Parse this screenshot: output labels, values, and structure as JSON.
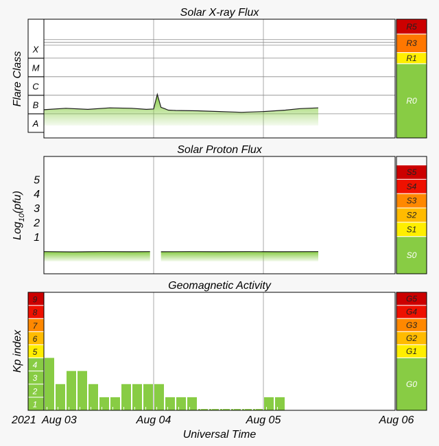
{
  "chart_data": [
    {
      "type": "area",
      "title": "Solar X-ray Flux",
      "ylabel": "Flare Class",
      "y_levels": [
        {
          "label": "A",
          "value": 1
        },
        {
          "label": "B",
          "value": 2
        },
        {
          "label": "C",
          "value": 3
        },
        {
          "label": "M",
          "value": 4
        },
        {
          "label": "X",
          "value": 5
        }
      ],
      "ylim": [
        0.2,
        6.6
      ],
      "xlim": [
        0,
        96
      ],
      "x_data_end": 75,
      "gap": [],
      "series": [
        {
          "x": [
            0,
            6,
            12,
            18,
            24,
            28,
            30,
            31,
            32,
            33,
            34,
            36,
            42,
            48,
            54,
            60,
            66,
            70,
            75
          ],
          "values": [
            1.72,
            1.8,
            1.74,
            1.82,
            1.8,
            1.74,
            1.76,
            2.55,
            1.85,
            1.78,
            1.7,
            1.68,
            1.66,
            1.62,
            1.58,
            1.62,
            1.7,
            1.78,
            1.82
          ]
        }
      ],
      "scale": [
        {
          "label": "R5",
          "from": 5.8,
          "to": 6.6,
          "color": "#cc0000"
        },
        {
          "label": "R3",
          "from": 4.8,
          "to": 5.8,
          "color": "#ff7700"
        },
        {
          "label": "R1",
          "from": 4.2,
          "to": 4.8,
          "color": "#ffee00"
        },
        {
          "label": "R0",
          "from": 0.2,
          "to": 4.2,
          "color": "#88cc44"
        }
      ]
    },
    {
      "type": "area",
      "title": "Solar Proton Flux",
      "ylabel": "Log10(pfu)",
      "ylabel_main": "Log",
      "ylabel_sub": "10",
      "ylabel_tail": "(pfu)",
      "ylim": [
        -1.6,
        6.6
      ],
      "yticks": [
        1,
        2,
        3,
        4,
        5
      ],
      "xlim": [
        0,
        96
      ],
      "x_data_end": 75,
      "gap": [
        29,
        32
      ],
      "series": [
        {
          "x": [
            0,
            8,
            16,
            24,
            29,
            32,
            40,
            48,
            56,
            64,
            75
          ],
          "values": [
            -0.05,
            -0.07,
            -0.05,
            -0.06,
            -0.05,
            -0.06,
            -0.05,
            -0.06,
            -0.05,
            -0.06,
            -0.05
          ]
        }
      ],
      "scale": [
        {
          "label": "S5",
          "from": 5.0,
          "to": 6.0,
          "color": "#cc0000"
        },
        {
          "label": "S4",
          "from": 4.0,
          "to": 5.0,
          "color": "#ee1100"
        },
        {
          "label": "S3",
          "from": 3.0,
          "to": 4.0,
          "color": "#ff8800"
        },
        {
          "label": "S2",
          "from": 2.0,
          "to": 3.0,
          "color": "#ffbb00"
        },
        {
          "label": "S1",
          "from": 1.0,
          "to": 2.0,
          "color": "#ffee00"
        },
        {
          "label": "S0",
          "from": -1.6,
          "to": 1.0,
          "color": "#88cc44"
        }
      ]
    },
    {
      "type": "bar",
      "title": "Geomagnetic Activity",
      "ylabel": "Kp index",
      "ylim": [
        0,
        9
      ],
      "xlim": [
        0,
        96
      ],
      "bar_width_hours": 3,
      "bar_color": "#88cc44",
      "bars": [
        {
          "start": 0,
          "value": 4.0
        },
        {
          "start": 3,
          "value": 2.0
        },
        {
          "start": 6,
          "value": 3.0
        },
        {
          "start": 9,
          "value": 3.0
        },
        {
          "start": 12,
          "value": 2.0
        },
        {
          "start": 15,
          "value": 1.0
        },
        {
          "start": 18,
          "value": 1.0
        },
        {
          "start": 21,
          "value": 2.0
        },
        {
          "start": 24,
          "value": 2.0
        },
        {
          "start": 27,
          "value": 2.0
        },
        {
          "start": 30,
          "value": 2.0
        },
        {
          "start": 33,
          "value": 1.0
        },
        {
          "start": 36,
          "value": 1.0
        },
        {
          "start": 39,
          "value": 1.0
        },
        {
          "start": 42,
          "value": 0.1
        },
        {
          "start": 45,
          "value": 0.1
        },
        {
          "start": 48,
          "value": 0.1
        },
        {
          "start": 51,
          "value": 0.1
        },
        {
          "start": 54,
          "value": 0.1
        },
        {
          "start": 57,
          "value": 0.1
        },
        {
          "start": 60,
          "value": 1.0
        },
        {
          "start": 63,
          "value": 1.0
        }
      ],
      "kp_levels": [
        {
          "label": "1",
          "color": "#88cc44"
        },
        {
          "label": "2",
          "color": "#88cc44"
        },
        {
          "label": "3",
          "color": "#88cc44"
        },
        {
          "label": "4",
          "color": "#88cc44"
        },
        {
          "label": "5",
          "color": "#ffee00"
        },
        {
          "label": "6",
          "color": "#ffbb00"
        },
        {
          "label": "7",
          "color": "#ff8800"
        },
        {
          "label": "8",
          "color": "#ee1100"
        },
        {
          "label": "9",
          "color": "#cc0000"
        }
      ],
      "scale": [
        {
          "label": "G5",
          "from": 8,
          "to": 9,
          "color": "#cc0000"
        },
        {
          "label": "G4",
          "from": 7,
          "to": 8,
          "color": "#ee1100"
        },
        {
          "label": "G3",
          "from": 6,
          "to": 7,
          "color": "#ff8800"
        },
        {
          "label": "G2",
          "from": 5,
          "to": 6,
          "color": "#ffbb00"
        },
        {
          "label": "G1",
          "from": 4,
          "to": 5,
          "color": "#ffee00"
        },
        {
          "label": "G0",
          "from": 0,
          "to": 4,
          "color": "#88cc44"
        }
      ]
    }
  ],
  "x_axis": {
    "year_label": "2021",
    "xlim": [
      0,
      96
    ],
    "ticks": [
      {
        "value": 0,
        "label": "Aug 03"
      },
      {
        "value": 30,
        "label": "Aug 04"
      },
      {
        "value": 60,
        "label": "Aug 05"
      },
      {
        "value": 96,
        "label": "Aug 06"
      }
    ],
    "gridlines": [
      30,
      60
    ],
    "xlabel": "Universal Time"
  }
}
